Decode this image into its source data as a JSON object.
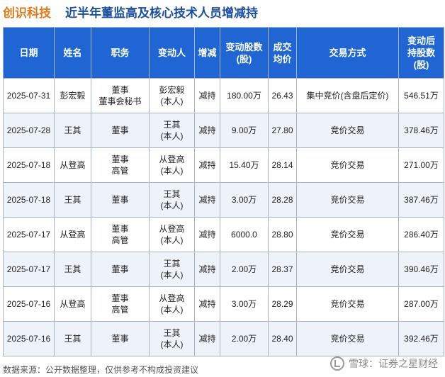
{
  "title": {
    "company": "创识科技",
    "text": "近半年董监高及核心技术人员增减持"
  },
  "table": {
    "headers": [
      [
        "日期"
      ],
      [
        "姓名"
      ],
      [
        "职务"
      ],
      [
        "变动人"
      ],
      [
        "增减"
      ],
      [
        "变动股数",
        "(股)"
      ],
      [
        "成交",
        "均价"
      ],
      [
        "交易方式"
      ],
      [
        "变动后",
        "持股数",
        "(股)"
      ]
    ],
    "rows": [
      {
        "date": "2025-07-31",
        "name": "彭宏毅",
        "position": [
          "董事",
          "董事会秘书"
        ],
        "changer": [
          "彭宏毅",
          "(本人)"
        ],
        "change": "减持",
        "shares": "180.00万",
        "price": "26.43",
        "method": "集中竞价(含盘后定价)",
        "after": "546.51万"
      },
      {
        "date": "2025-07-28",
        "name": "王其",
        "position": [
          "董事"
        ],
        "changer": [
          "王其",
          "(本人)"
        ],
        "change": "减持",
        "shares": "9.00万",
        "price": "27.80",
        "method": "竞价交易",
        "after": "378.46万"
      },
      {
        "date": "2025-07-18",
        "name": "从登高",
        "position": [
          "董事",
          "高管"
        ],
        "changer": [
          "从登高",
          "(本人)"
        ],
        "change": "减持",
        "shares": "15.40万",
        "price": "28.14",
        "method": "竞价交易",
        "after": "271.00万"
      },
      {
        "date": "2025-07-18",
        "name": "王其",
        "position": [
          "董事"
        ],
        "changer": [
          "王其",
          "(本人)"
        ],
        "change": "减持",
        "shares": "3.00万",
        "price": "28.28",
        "method": "竞价交易",
        "after": "387.46万"
      },
      {
        "date": "2025-07-17",
        "name": "从登高",
        "position": [
          "董事",
          "高管"
        ],
        "changer": [
          "从登高",
          "(本人)"
        ],
        "change": "减持",
        "shares": "6000.0",
        "price": "28.80",
        "method": "竞价交易",
        "after": "286.40万"
      },
      {
        "date": "2025-07-17",
        "name": "王其",
        "position": [
          "董事"
        ],
        "changer": [
          "王其",
          "(本人)"
        ],
        "change": "减持",
        "shares": "2.00万",
        "price": "28.37",
        "method": "竞价交易",
        "after": "390.46万"
      },
      {
        "date": "2025-07-16",
        "name": "从登高",
        "position": [
          "董事",
          "高管"
        ],
        "changer": [
          "从登高",
          "(本人)"
        ],
        "change": "减持",
        "shares": "3.00万",
        "price": "28.29",
        "method": "竞价交易",
        "after": "287.00万"
      },
      {
        "date": "2025-07-16",
        "name": "王其",
        "position": [
          "董事"
        ],
        "changer": [
          "王其",
          "(本人)"
        ],
        "change": "减持",
        "shares": "2.00万",
        "price": "28.40",
        "method": "竞价交易",
        "after": "392.46万"
      }
    ]
  },
  "footer": {
    "source": "数据来源：公开数据整理，仅供参考不构成投资建议",
    "brand": "雪球：证券之星财经"
  },
  "colors": {
    "header_bg": "#1f66d4",
    "title_company": "#e07a16",
    "title_text": "#1a4fa0",
    "decrease": "#1f9a3a"
  },
  "icons": {
    "brand_logo": "snowball-logo-icon"
  }
}
